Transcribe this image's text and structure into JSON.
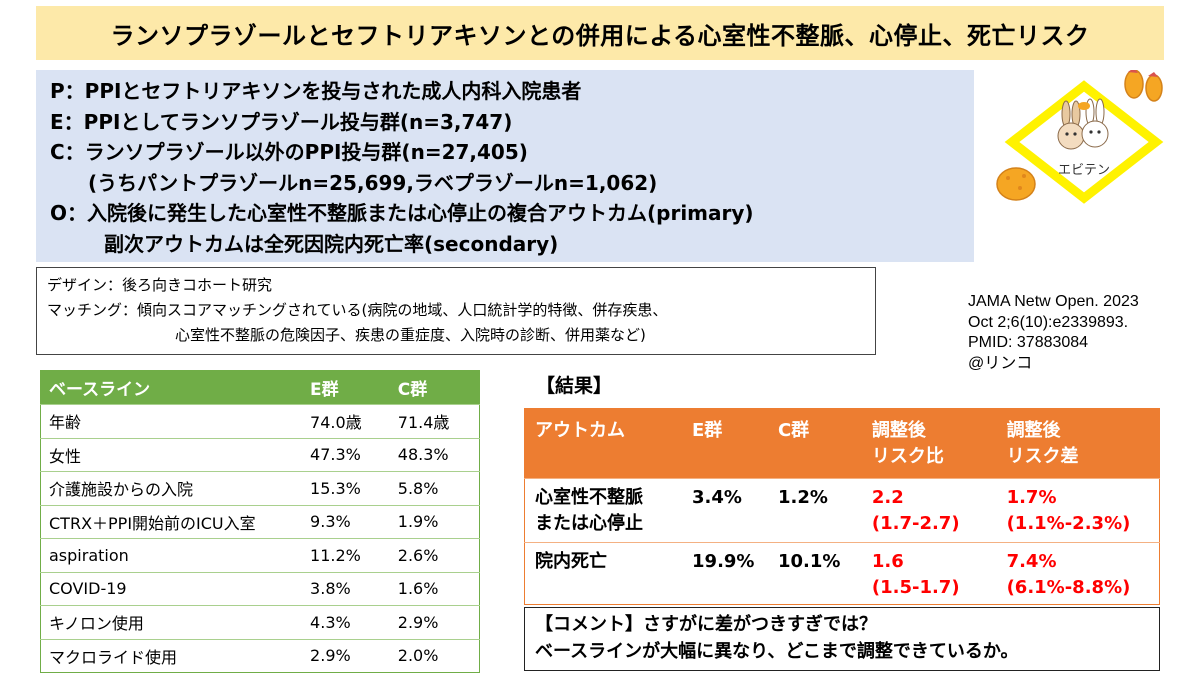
{
  "title": "ランソプラゾールとセフトリアキソンとの併用による心室性不整脈、心停止、死亡リスク",
  "peco": [
    "P：PPIとセフトリアキソンを投与された成人内科入院患者",
    "E：PPIとしてランソプラゾール投与群(n=3,747)",
    "C：ランソプラゾール以外のPPI投与群(n=27,405)",
    "(うちパントプラゾールn=25,699,ラベプラゾールn=1,062)",
    "O：入院後に発生した心室性不整脈または心停止の複合アウトカム(primary)",
    "副次アウトカムは全死因院内死亡率(secondary)"
  ],
  "design": [
    "デザイン：後ろ向きコホート研究",
    "マッチング：傾向スコアマッチングされている(病院の地域、人口統計学的特徴、併存疾患、",
    "心室性不整脈の危険因子、疾患の重症度、入院時の診断、併用薬など)"
  ],
  "citation": [
    "JAMA Netw Open. 2023",
    "Oct 2;6(10):e2339893.",
    "PMID: 37883084",
    "@リンコ"
  ],
  "logo": {
    "label": "エビテン",
    "icon": "tempura-rabbits-logo",
    "colors": {
      "frame": "#fff200",
      "tempura": "#f5a623"
    }
  },
  "baseline": {
    "headers": [
      "ベースライン",
      "E群",
      "C群"
    ],
    "rows": [
      [
        "年齢",
        "74.0歳",
        "71.4歳"
      ],
      [
        "女性",
        "47.3%",
        "48.3%"
      ],
      [
        "介護施設からの入院",
        "15.3%",
        "5.8%"
      ],
      [
        "CTRX＋PPI開始前のICU入室",
        "9.3%",
        "1.9%"
      ],
      [
        "aspiration",
        "11.2%",
        "2.6%"
      ],
      [
        "COVID-19",
        "3.8%",
        "1.6%"
      ],
      [
        "キノロン使用",
        "4.3%",
        "2.9%"
      ],
      [
        "マクロライド使用",
        "2.9%",
        "2.0%"
      ]
    ]
  },
  "results": {
    "heading": "【結果】",
    "headers": [
      "アウトカム",
      "E群",
      "C群",
      "調整後\nリスク比",
      "調整後\nリスク差"
    ],
    "rows": [
      [
        "心室性不整脈\nまたは心停止",
        "3.4%",
        "1.2%",
        "2.2\n(1.7-2.7)",
        "1.7%\n(1.1%-2.3%)"
      ],
      [
        "院内死亡",
        "19.9%",
        "10.1%",
        "1.6\n(1.5-1.7)",
        "7.4%\n(6.1%-8.8%)"
      ]
    ]
  },
  "comment": [
    "【コメント】さすがに差がつきすぎでは？",
    "ベースラインが大幅に異なり、どこまで調整できているか。"
  ],
  "colors": {
    "title_bg": "#fde9a9",
    "peco_bg": "#dae3f3",
    "baseline_header": "#70ad47",
    "results_header": "#ed7d31",
    "highlight_red": "#ff0000"
  }
}
